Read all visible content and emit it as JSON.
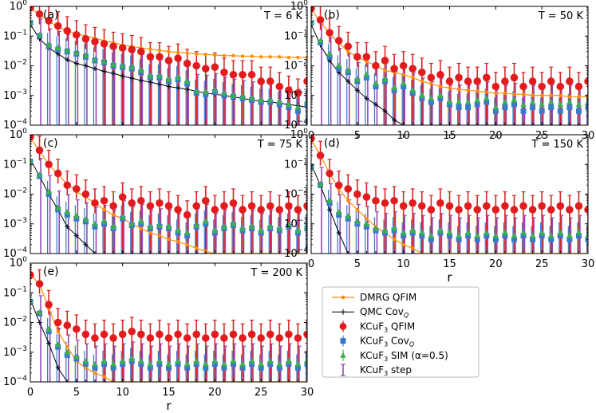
{
  "chart_data": {
    "type": "scatter",
    "xlabel": "r",
    "xlim": [
      0,
      30
    ],
    "ylim": [
      0.0001,
      1
    ],
    "yscale": "log",
    "x_ticks": [
      "0",
      "5",
      "10",
      "15",
      "20",
      "25",
      "30"
    ],
    "y_ticks": [
      "10^0",
      "10^-1",
      "10^-2",
      "10^-3",
      "10^-4"
    ],
    "y_tick_base": "10",
    "y_tick_exps": [
      "0",
      "−1",
      "−2",
      "−3",
      "−4"
    ],
    "colors": {
      "dmrg": "#ff8c00",
      "qmc": "#000000",
      "qfim": "#e41a1c",
      "qfim_edge": "#d62728",
      "cov": "#3a78c9",
      "sim": "#3cb04a",
      "step": "#8e4cb0"
    },
    "legend": {
      "entries": [
        {
          "key": "dmrg",
          "label": "DMRG QFIM"
        },
        {
          "key": "qmc",
          "label": "QMC Cov",
          "sub": "Q"
        },
        {
          "key": "qfim",
          "label": "KCuF",
          "sub": "3",
          "rest": " QFIM"
        },
        {
          "key": "cov",
          "label": "KCuF",
          "sub": "3",
          "rest": " Cov",
          "sub2": "Q"
        },
        {
          "key": "sim",
          "label": "KCuF",
          "sub": "3",
          "rest": " SIM (α=0.5)"
        },
        {
          "key": "step",
          "label": "KCuF",
          "sub": "3",
          "rest": " step"
        }
      ]
    },
    "panels": [
      {
        "label": "(a)",
        "temperature": "T = 6 K",
        "dmrg": [
          0.85,
          0.55,
          0.32,
          0.2,
          0.15,
          0.12,
          0.1,
          0.085,
          0.07,
          0.06,
          0.05,
          0.045,
          0.04,
          0.036,
          0.033,
          0.03,
          0.028,
          0.027,
          0.025,
          0.024,
          0.023,
          0.022,
          0.022,
          0.021,
          0.021,
          0.02,
          0.02,
          0.02,
          0.019,
          0.019,
          0.019
        ],
        "qmc": [
          0.25,
          0.08,
          0.04,
          0.025,
          0.016,
          0.012,
          0.01,
          0.008,
          0.0065,
          0.0055,
          0.0045,
          0.0038,
          0.0032,
          0.0028,
          0.0024,
          0.002,
          0.0018,
          0.0016,
          0.0014,
          0.0012,
          0.0011,
          0.001,
          0.0009,
          0.0008,
          0.0007,
          0.00065,
          0.0006,
          0.00055,
          0.0005,
          0.00045,
          0.0004
        ],
        "qfim": [
          0.9,
          0.55,
          0.33,
          0.22,
          0.15,
          0.11,
          0.08,
          0.065,
          0.055,
          0.045,
          0.04,
          0.035,
          0.03,
          0.02,
          0.02,
          0.015,
          0.018,
          0.012,
          0.01,
          0.008,
          0.009,
          0.006,
          0.005,
          0.005,
          0.005,
          0.003,
          0.003,
          0.002,
          0.0015,
          0.0012,
          0.003
        ],
        "cov": [
          0.28,
          0.1,
          0.045,
          0.035,
          0.03,
          0.025,
          0.02,
          0.015,
          0.013,
          0.01,
          0.009,
          0.008,
          0.006,
          0.004,
          0.004,
          0.003,
          0.0035,
          0.0025,
          0.0012,
          0.0011,
          0.0013,
          0.001,
          0.0009,
          0.0008,
          0.0007,
          0.0006,
          0.0006,
          0.0005,
          0.0004,
          0.0003,
          0.0005
        ],
        "sim": [
          0.3,
          0.11,
          0.05,
          0.04,
          0.032,
          0.027,
          0.022,
          0.016,
          0.014,
          0.011,
          0.01,
          0.009,
          0.007,
          0.0045,
          0.0045,
          0.0035,
          0.004,
          0.003,
          0.0014,
          0.0013,
          0.0015,
          0.0012,
          0.001,
          0.0009,
          0.0008,
          0.0007,
          0.0007,
          0.0006,
          0.0005,
          0.0004,
          0.0006
        ],
        "step": [
          0.32,
          0.12,
          0.055,
          0.045,
          0.035,
          0.03,
          0.024,
          0.018,
          0.015,
          0.012,
          0.011,
          0.01,
          0.0075,
          0.005,
          0.005,
          0.004,
          0.0045,
          0.0032,
          0.0016,
          0.0015,
          0.0017,
          0.0013,
          0.0011,
          0.001,
          0.0009,
          0.0008,
          0.0008,
          0.0007,
          0.0006,
          0.0005,
          0.0007
        ]
      },
      {
        "label": "(b)",
        "temperature": "T = 50 K",
        "dmrg": [
          0.8,
          0.3,
          0.12,
          0.06,
          0.03,
          0.02,
          0.014,
          0.01,
          0.007,
          0.006,
          0.005,
          0.004,
          0.003,
          0.0025,
          0.002,
          0.0018,
          0.0016,
          0.0015,
          0.0014,
          0.0013,
          0.0012,
          0.0012,
          0.0011,
          0.0011,
          0.001,
          0.001,
          0.001,
          0.001,
          0.0009,
          0.0009,
          0.0009
        ],
        "qmc": [
          0.25,
          0.05,
          0.015,
          0.006,
          0.003,
          0.0015,
          0.0008,
          0.0005,
          0.0003,
          0.00015,
          0.0001,
          0.0001,
          0.0001,
          0.0001,
          0.0001,
          0.0001,
          0.0001,
          0.0001,
          0.0001,
          0.0001,
          0.0001,
          0.0001,
          0.0001,
          0.0001,
          0.0001,
          0.0001,
          0.0001,
          0.0001,
          0.0001,
          0.0001,
          0.0001
        ],
        "qfim": [
          0.85,
          0.35,
          0.13,
          0.07,
          0.045,
          0.02,
          0.02,
          0.01,
          0.015,
          0.008,
          0.01,
          0.008,
          0.006,
          0.004,
          0.005,
          0.003,
          0.004,
          0.003,
          0.003,
          0.004,
          0.002,
          0.003,
          0.004,
          0.002,
          0.003,
          0.002,
          0.003,
          0.002,
          0.003,
          0.002,
          0.003
        ],
        "cov": [
          0.28,
          0.06,
          0.02,
          0.008,
          0.006,
          0.003,
          0.004,
          0.002,
          0.003,
          0.0015,
          0.002,
          0.0012,
          0.0008,
          0.0006,
          0.0008,
          0.0005,
          0.0004,
          0.0004,
          0.0005,
          0.0006,
          0.0003,
          0.0004,
          0.0005,
          0.0003,
          0.0004,
          0.0003,
          0.0004,
          0.0003,
          0.0004,
          0.0003,
          0.0004
        ],
        "sim": [
          0.3,
          0.07,
          0.025,
          0.01,
          0.007,
          0.0035,
          0.005,
          0.0025,
          0.0035,
          0.0018,
          0.0025,
          0.0015,
          0.001,
          0.0008,
          0.001,
          0.0006,
          0.0006,
          0.0006,
          0.0007,
          0.0008,
          0.0004,
          0.0006,
          0.0007,
          0.0005,
          0.0006,
          0.0005,
          0.0006,
          0.0005,
          0.0006,
          0.0005,
          0.0006
        ],
        "step": [
          0.32,
          0.08,
          0.028,
          0.012,
          0.008,
          0.004,
          0.006,
          0.003,
          0.004,
          0.002,
          0.003,
          0.0018,
          0.0012,
          0.0009,
          0.0012,
          0.0007,
          0.0007,
          0.0007,
          0.0008,
          0.0009,
          0.0005,
          0.0007,
          0.0008,
          0.0006,
          0.0007,
          0.0006,
          0.0007,
          0.0006,
          0.0007,
          0.0006,
          0.0007
        ]
      },
      {
        "label": "(c)",
        "temperature": "T = 75 K",
        "dmrg": [
          0.8,
          0.28,
          0.1,
          0.045,
          0.022,
          0.012,
          0.008,
          0.005,
          0.003,
          0.002,
          0.0015,
          0.001,
          0.0007,
          0.0005,
          0.0004,
          0.0003,
          0.00025,
          0.0002,
          0.00015,
          0.00012,
          0.0001,
          0.0001,
          0.0001,
          0.0001,
          0.0001,
          0.0001,
          0.0001,
          0.0001,
          0.0001,
          0.0001,
          0.0001
        ],
        "qmc": [
          0.15,
          0.04,
          0.01,
          0.003,
          0.0008,
          0.0004,
          0.0002,
          0.0001,
          0.0001,
          0.0001,
          0.0001,
          0.0001,
          0.0001,
          0.0001,
          0.0001,
          0.0001,
          0.0001,
          0.0001,
          0.0001,
          0.0001,
          0.0001,
          0.0001,
          0.0001,
          0.0001,
          0.0001,
          0.0001,
          0.0001,
          0.0001,
          0.0001,
          0.0001,
          0.0001
        ],
        "qfim": [
          0.85,
          0.3,
          0.1,
          0.05,
          0.02,
          0.015,
          0.01,
          0.005,
          0.006,
          0.004,
          0.008,
          0.005,
          0.006,
          0.004,
          0.005,
          0.004,
          0.003,
          0.002,
          0.004,
          0.006,
          0.003,
          0.004,
          0.005,
          0.003,
          0.004,
          0.003,
          0.004,
          0.003,
          0.004,
          0.003,
          0.004
        ],
        "cov": [
          0.12,
          0.04,
          0.01,
          0.003,
          0.002,
          0.0015,
          0.0012,
          0.0008,
          0.001,
          0.0007,
          0.0015,
          0.0009,
          0.001,
          0.0007,
          0.0008,
          0.0007,
          0.0005,
          0.0004,
          0.0008,
          0.001,
          0.0005,
          0.0007,
          0.0009,
          0.0006,
          0.0007,
          0.0005,
          0.0007,
          0.0006,
          0.0008,
          0.0005,
          0.0007
        ],
        "sim": [
          0.13,
          0.045,
          0.012,
          0.0035,
          0.0025,
          0.0018,
          0.0014,
          0.001,
          0.0012,
          0.0008,
          0.0017,
          0.001,
          0.0012,
          0.0008,
          0.0009,
          0.0008,
          0.0006,
          0.0005,
          0.0009,
          0.0012,
          0.0006,
          0.0008,
          0.001,
          0.0007,
          0.0008,
          0.0006,
          0.0008,
          0.0007,
          0.0009,
          0.0006,
          0.0008
        ],
        "step": [
          0.14,
          0.05,
          0.013,
          0.004,
          0.003,
          0.002,
          0.0016,
          0.0011,
          0.0013,
          0.0009,
          0.0019,
          0.0012,
          0.0014,
          0.0009,
          0.001,
          0.0009,
          0.0007,
          0.0006,
          0.001,
          0.0014,
          0.0007,
          0.0009,
          0.0012,
          0.0008,
          0.0009,
          0.0007,
          0.0009,
          0.0008,
          0.001,
          0.0007,
          0.0009
        ]
      },
      {
        "label": "(d)",
        "temperature": "T = 150 K",
        "dmrg": [
          0.7,
          0.2,
          0.05,
          0.015,
          0.006,
          0.003,
          0.0015,
          0.0008,
          0.0005,
          0.0003,
          0.0002,
          0.00015,
          0.0001,
          0.0001,
          0.0001,
          0.0001,
          0.0001,
          0.0001,
          0.0001,
          0.0001,
          0.0001,
          0.0001,
          0.0001,
          0.0001,
          0.0001,
          0.0001,
          0.0001,
          0.0001,
          0.0001,
          0.0001,
          0.0001
        ],
        "qmc": [
          0.1,
          0.02,
          0.003,
          0.0005,
          0.0001,
          0.0001,
          0.0001,
          0.0001,
          0.0001,
          0.0001,
          0.0001,
          0.0001,
          0.0001,
          0.0001,
          0.0001,
          0.0001,
          0.0001,
          0.0001,
          0.0001,
          0.0001,
          0.0001,
          0.0001,
          0.0001,
          0.0001,
          0.0001,
          0.0001,
          0.0001,
          0.0001,
          0.0001,
          0.0001,
          0.0001
        ],
        "qfim": [
          0.75,
          0.2,
          0.05,
          0.02,
          0.015,
          0.01,
          0.008,
          0.006,
          0.005,
          0.006,
          0.004,
          0.005,
          0.004,
          0.003,
          0.005,
          0.004,
          0.003,
          0.004,
          0.003,
          0.004,
          0.003,
          0.004,
          0.003,
          0.004,
          0.003,
          0.004,
          0.003,
          0.004,
          0.003,
          0.004,
          0.003
        ],
        "cov": [
          0.08,
          0.02,
          0.005,
          0.002,
          0.0015,
          0.001,
          0.0008,
          0.0006,
          0.0005,
          0.0006,
          0.0004,
          0.0005,
          0.0004,
          0.0003,
          0.0005,
          0.0004,
          0.0003,
          0.0004,
          0.0003,
          0.0004,
          0.0003,
          0.0004,
          0.0003,
          0.0004,
          0.0003,
          0.0004,
          0.0003,
          0.0004,
          0.0003,
          0.0004,
          0.0003
        ],
        "sim": [
          0.09,
          0.022,
          0.006,
          0.0025,
          0.0018,
          0.0012,
          0.001,
          0.0007,
          0.0006,
          0.0007,
          0.0005,
          0.0006,
          0.0005,
          0.0004,
          0.0006,
          0.0005,
          0.0004,
          0.0005,
          0.0004,
          0.0005,
          0.0004,
          0.0005,
          0.0004,
          0.0005,
          0.0004,
          0.0005,
          0.0004,
          0.0005,
          0.0004,
          0.0005,
          0.0004
        ],
        "step": [
          0.1,
          0.025,
          0.007,
          0.003,
          0.002,
          0.0014,
          0.0012,
          0.0008,
          0.0007,
          0.0008,
          0.0006,
          0.0007,
          0.0006,
          0.0005,
          0.0007,
          0.0006,
          0.0005,
          0.0006,
          0.0005,
          0.0006,
          0.0005,
          0.0006,
          0.0005,
          0.0006,
          0.0005,
          0.0006,
          0.0005,
          0.0006,
          0.0005,
          0.0006,
          0.0005
        ]
      },
      {
        "label": "(e)",
        "temperature": "T = 200 K",
        "dmrg": [
          0.4,
          0.2,
          0.03,
          0.005,
          0.0015,
          0.0005,
          0.0003,
          0.0002,
          0.00015,
          0.0001,
          0.0001,
          0.0001,
          0.0001,
          0.0001,
          0.0001,
          0.0001,
          0.0001,
          0.0001,
          0.0001,
          0.0001,
          0.0001,
          0.0001,
          0.0001,
          0.0001,
          0.0001,
          0.0001,
          0.0001,
          0.0001,
          0.0001,
          0.0001,
          0.0001
        ],
        "qmc": [
          0.06,
          0.01,
          0.002,
          0.0003,
          0.0001,
          0.0001,
          0.0001,
          0.0001,
          0.0001,
          0.0001,
          0.0001,
          0.0001,
          0.0001,
          0.0001,
          0.0001,
          0.0001,
          0.0001,
          0.0001,
          0.0001,
          0.0001,
          0.0001,
          0.0001,
          0.0001,
          0.0001,
          0.0001,
          0.0001,
          0.0001,
          0.0001,
          0.0001,
          0.0001,
          0.0001
        ],
        "qfim": [
          0.4,
          0.2,
          0.04,
          0.01,
          0.008,
          0.006,
          0.004,
          0.003,
          0.004,
          0.003,
          0.004,
          0.005,
          0.004,
          0.003,
          0.004,
          0.003,
          0.004,
          0.003,
          0.004,
          0.003,
          0.004,
          0.003,
          0.004,
          0.003,
          0.004,
          0.003,
          0.004,
          0.003,
          0.004,
          0.003,
          0.004
        ],
        "cov": [
          0.05,
          0.02,
          0.005,
          0.0015,
          0.0008,
          0.0006,
          0.0004,
          0.0003,
          0.0004,
          0.0003,
          0.0004,
          0.0005,
          0.0004,
          0.0003,
          0.0004,
          0.0003,
          0.0004,
          0.0003,
          0.0004,
          0.0003,
          0.0004,
          0.0003,
          0.0004,
          0.0003,
          0.0004,
          0.0003,
          0.0004,
          0.0003,
          0.0004,
          0.0003,
          0.0004
        ],
        "sim": [
          0.055,
          0.022,
          0.006,
          0.0018,
          0.001,
          0.0007,
          0.0005,
          0.0004,
          0.0005,
          0.0004,
          0.0005,
          0.0006,
          0.0005,
          0.0004,
          0.0005,
          0.0004,
          0.0005,
          0.0004,
          0.0005,
          0.0004,
          0.0005,
          0.0004,
          0.0005,
          0.0004,
          0.0005,
          0.0004,
          0.0005,
          0.0004,
          0.0005,
          0.0004,
          0.0005
        ],
        "step": [
          0.06,
          0.025,
          0.007,
          0.002,
          0.0012,
          0.0008,
          0.0006,
          0.0005,
          0.0006,
          0.0005,
          0.0006,
          0.0007,
          0.0006,
          0.0005,
          0.0006,
          0.0005,
          0.0006,
          0.0005,
          0.0006,
          0.0005,
          0.0006,
          0.0005,
          0.0006,
          0.0005,
          0.0006,
          0.0005,
          0.0006,
          0.0005,
          0.0006,
          0.0005,
          0.0006
        ]
      }
    ]
  }
}
